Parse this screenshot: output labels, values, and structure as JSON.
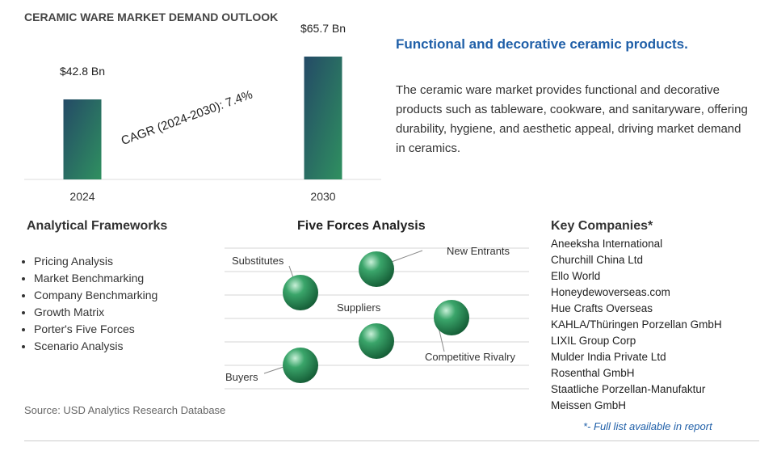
{
  "header": {
    "title": "CERAMIC WARE MARKET DEMAND OUTLOOK"
  },
  "chart_data": {
    "type": "bar",
    "categories": [
      "2024",
      "2030"
    ],
    "values": [
      42.8,
      65.7
    ],
    "value_labels": [
      "$42.8 Bn",
      "$65.7 Bn"
    ],
    "color": "#2a7a5e",
    "annotation": "CAGR (2024-2030):  7.4%"
  },
  "summary": {
    "heading": "Functional and decorative ceramic products.",
    "text": "The ceramic ware market provides functional and decorative products such as tableware, cookware, and sanitaryware, offering durability, hygiene, and aesthetic appeal, driving market demand in ceramics."
  },
  "frameworks": {
    "title": "Analytical Frameworks",
    "items": [
      "Pricing Analysis",
      "Market Benchmarking",
      "Company Benchmarking",
      "Growth Matrix",
      "Porter's Five Forces",
      "Scenario Analysis"
    ]
  },
  "five_forces": {
    "title": "Five Forces Analysis",
    "forces": [
      "Substitutes",
      "New Entrants",
      "Suppliers",
      "Competitive Rivalry",
      "Buyers"
    ]
  },
  "key_companies": {
    "title": "Key Companies*",
    "items": [
      "Aneeksha International",
      "Churchill China Ltd",
      "Ello World",
      "Honeydewoverseas.com",
      "Hue Crafts Overseas",
      "KAHLA/Thüringen Porzellan GmbH",
      "LIXIL Group Corp",
      "Mulder India Private Ltd",
      "Rosenthal GmbH",
      "Staatliche Porzellan-Manufaktur Meissen GmbH"
    ],
    "note": "*- Full list available in report"
  },
  "source": "Source: USD Analytics Research Database"
}
